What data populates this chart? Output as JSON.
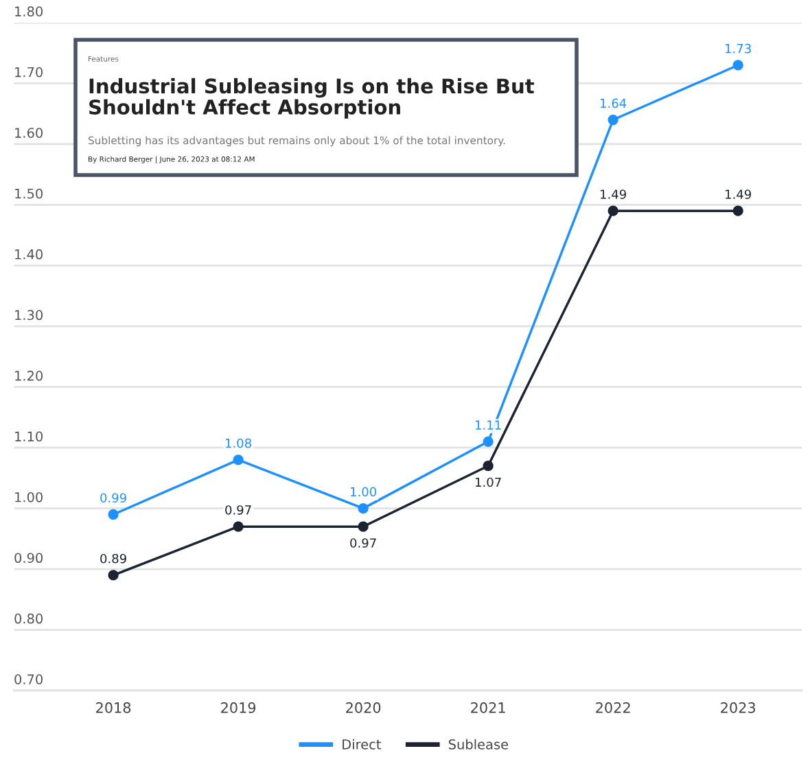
{
  "chart_data": {
    "type": "line",
    "categories": [
      "2018",
      "2019",
      "2020",
      "2021",
      "2022",
      "2023"
    ],
    "series": [
      {
        "name": "Direct",
        "color": "#1e90ff",
        "values": [
          0.99,
          1.08,
          1.0,
          1.11,
          1.64,
          1.73
        ],
        "value_labels": [
          "0.99",
          "1.08",
          "1.00",
          "1.11",
          "1.64",
          "1.73"
        ]
      },
      {
        "name": "Sublease",
        "color": "#1c2331",
        "values": [
          0.89,
          0.97,
          0.97,
          1.07,
          1.49,
          1.49
        ],
        "value_labels": [
          "0.89",
          "0.97",
          "0.97",
          "1.07",
          "1.49",
          "1.49"
        ]
      }
    ],
    "ylim": [
      0.7,
      1.8
    ],
    "yticks": [
      "0.70",
      "0.80",
      "0.90",
      "1.00",
      "1.10",
      "1.20",
      "1.30",
      "1.40",
      "1.50",
      "1.60",
      "1.70",
      "1.80"
    ],
    "grid": "y",
    "legend": "bottom",
    "marker": "circle",
    "line_style": "solid",
    "annotations": [
      "Features",
      "Industrial Subleasing Is on the Rise But Shouldn't Affect Absorption",
      "Subletting has its advantages but remains only about 1% of the total inventory.",
      "By Richard Berger | June 26, 2023 at 08:12 AM"
    ]
  }
}
